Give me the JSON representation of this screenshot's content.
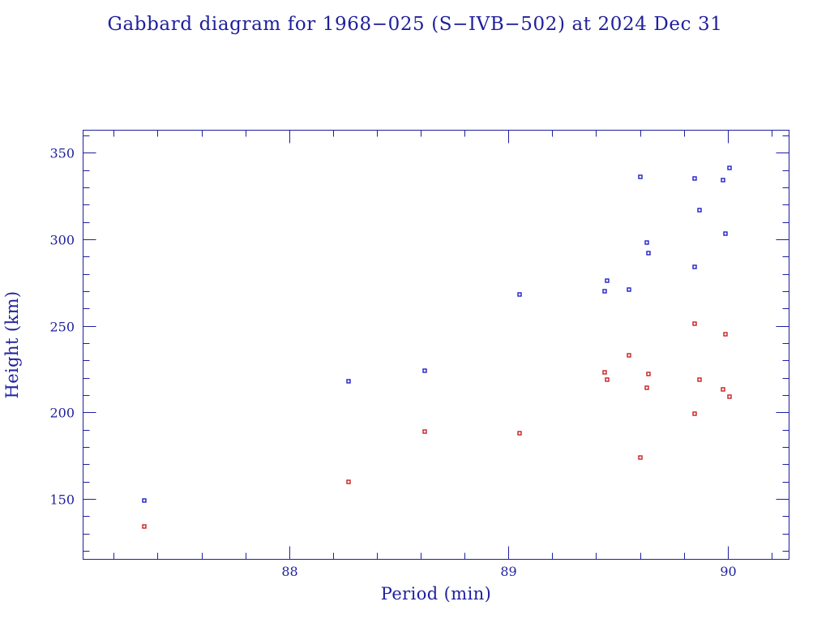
{
  "colors": {
    "text": "#1f1f9e",
    "frame": "#1f1f9e",
    "apogee": "#1f1fc8",
    "perigee": "#c81e1e",
    "background": "#ffffff"
  },
  "chart_data": {
    "type": "scatter",
    "title": "Gabbard diagram for 1968−025 (S−IVB−502) at 2024 Dec 31",
    "xlabel": "Period (min)",
    "ylabel": "Height (km)",
    "xlim": [
      87.06,
      90.28
    ],
    "ylim": [
      115,
      363
    ],
    "grid": false,
    "legend": "none",
    "x_ticks": {
      "major": [
        88,
        89,
        90
      ],
      "labels": [
        "88",
        "89",
        "90"
      ],
      "minor": [
        87.2,
        87.4,
        87.6,
        87.8,
        88.2,
        88.4,
        88.6,
        88.8,
        89.2,
        89.4,
        89.6,
        89.8,
        90.2
      ]
    },
    "y_ticks": {
      "major": [
        150,
        200,
        250,
        300,
        350
      ],
      "labels": [
        "150",
        "200",
        "250",
        "300",
        "350"
      ],
      "minor": [
        120,
        130,
        140,
        160,
        170,
        180,
        190,
        210,
        220,
        230,
        240,
        260,
        270,
        280,
        290,
        310,
        320,
        330,
        340,
        360
      ]
    },
    "series": [
      {
        "color": "#1f1fc8",
        "points": [
          {
            "x": 87.34,
            "y": 149
          },
          {
            "x": 88.27,
            "y": 218
          },
          {
            "x": 88.62,
            "y": 224
          },
          {
            "x": 89.05,
            "y": 268
          },
          {
            "x": 89.44,
            "y": 270
          },
          {
            "x": 89.45,
            "y": 276
          },
          {
            "x": 89.55,
            "y": 271
          },
          {
            "x": 89.6,
            "y": 336
          },
          {
            "x": 89.63,
            "y": 298
          },
          {
            "x": 89.64,
            "y": 292
          },
          {
            "x": 89.85,
            "y": 335
          },
          {
            "x": 89.85,
            "y": 284
          },
          {
            "x": 89.87,
            "y": 317
          },
          {
            "x": 89.98,
            "y": 334
          },
          {
            "x": 89.99,
            "y": 303
          },
          {
            "x": 90.01,
            "y": 341
          }
        ]
      },
      {
        "color": "#c81e1e",
        "points": [
          {
            "x": 87.34,
            "y": 134
          },
          {
            "x": 88.27,
            "y": 160
          },
          {
            "x": 88.62,
            "y": 189
          },
          {
            "x": 89.05,
            "y": 188
          },
          {
            "x": 89.44,
            "y": 223
          },
          {
            "x": 89.45,
            "y": 219
          },
          {
            "x": 89.55,
            "y": 233
          },
          {
            "x": 89.6,
            "y": 174
          },
          {
            "x": 89.63,
            "y": 214
          },
          {
            "x": 89.64,
            "y": 222
          },
          {
            "x": 89.85,
            "y": 251
          },
          {
            "x": 89.85,
            "y": 199
          },
          {
            "x": 89.87,
            "y": 219
          },
          {
            "x": 89.98,
            "y": 213
          },
          {
            "x": 89.99,
            "y": 245
          },
          {
            "x": 90.01,
            "y": 209
          }
        ]
      }
    ]
  }
}
